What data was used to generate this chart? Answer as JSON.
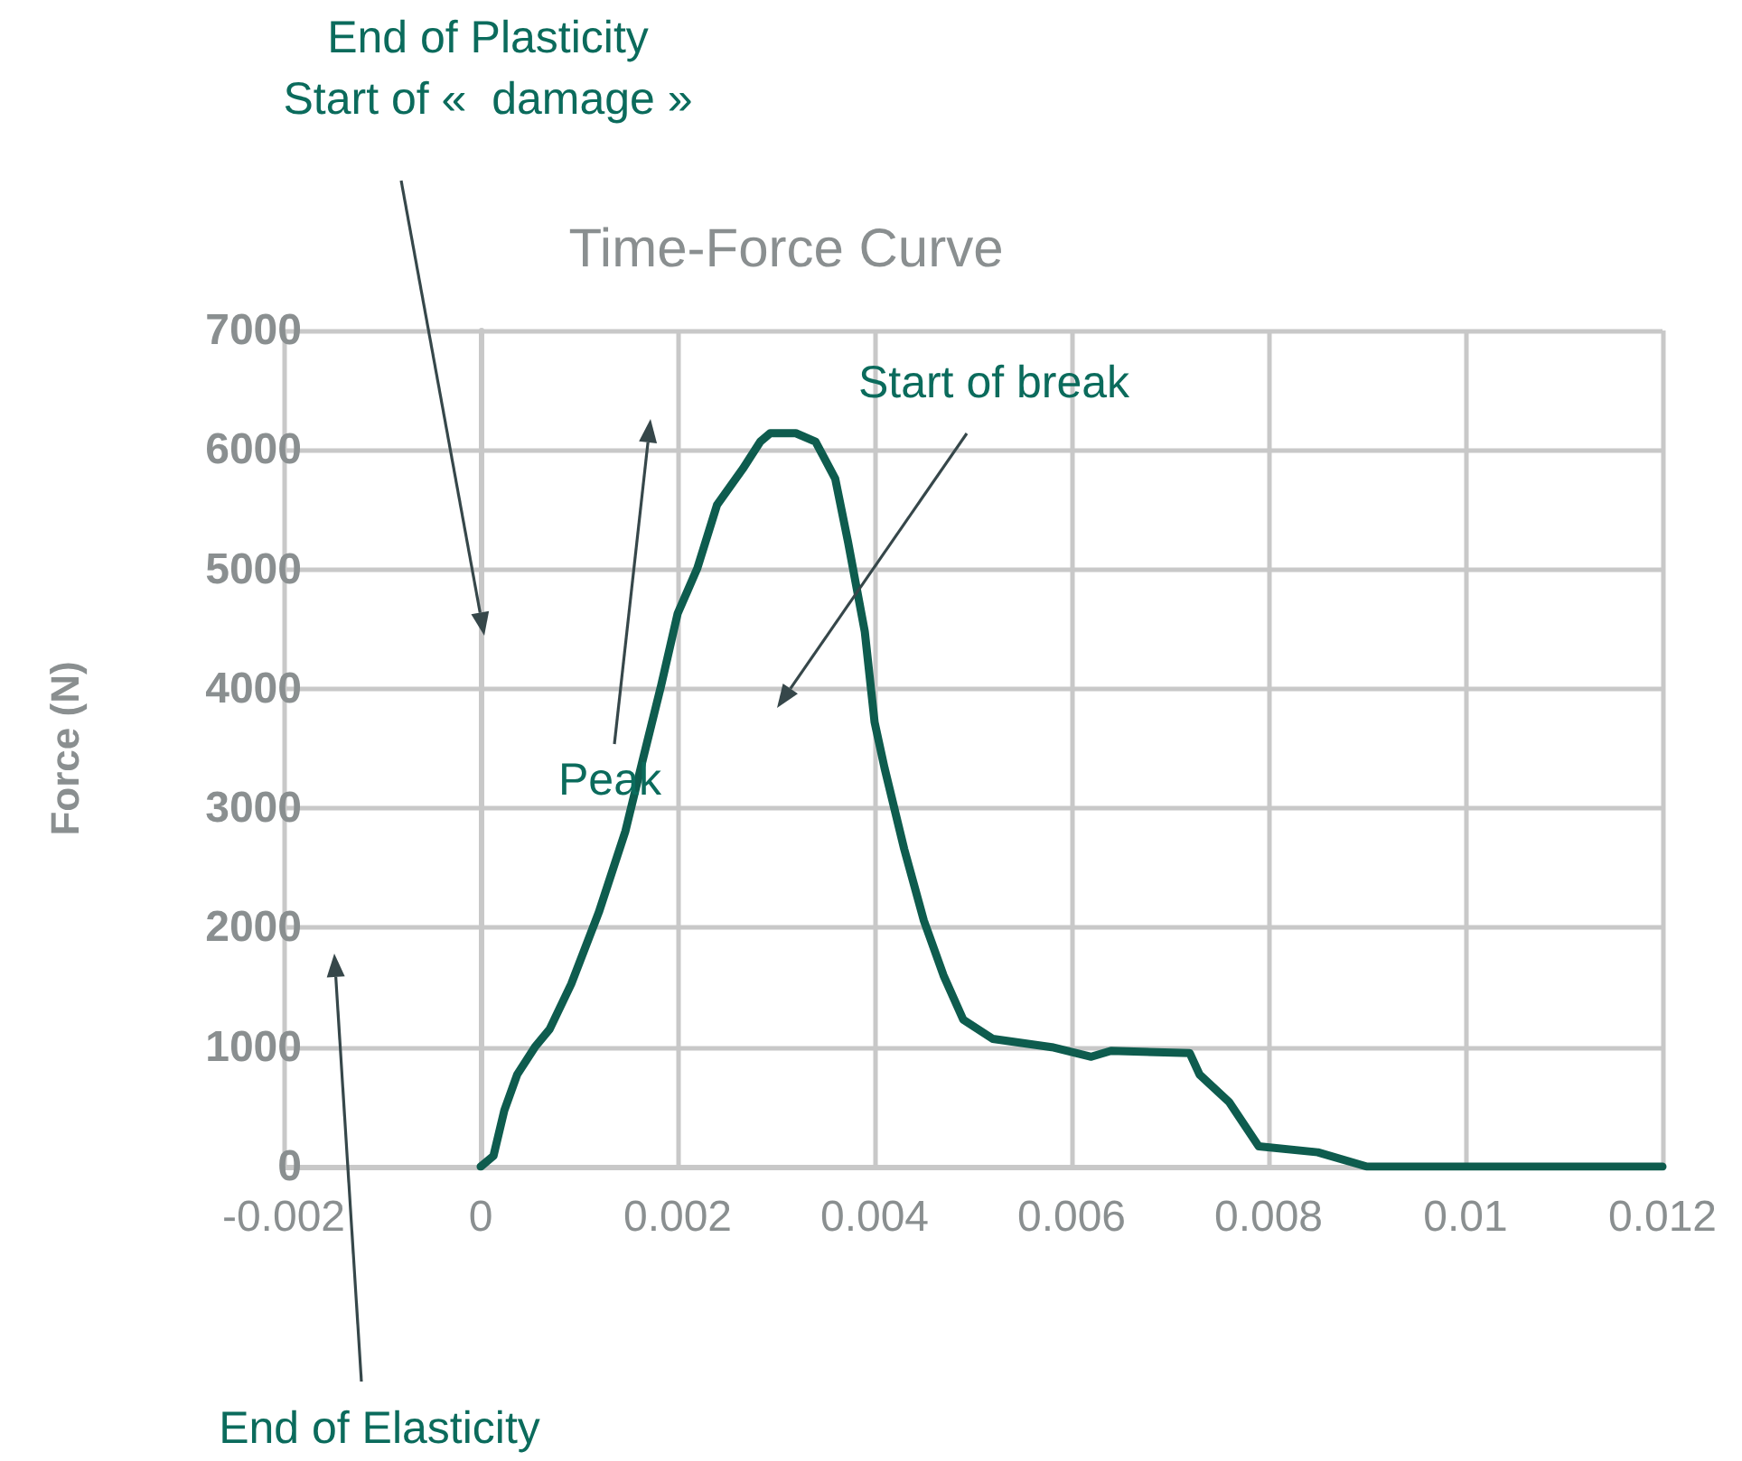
{
  "chart_data": {
    "type": "line",
    "title": "Time-Force Curve",
    "ylabel": "Force (N)",
    "annotations": [
      "End of Plasticity\nStart of «  damage »",
      "Peak",
      "Start of break",
      "End of Elasticity"
    ],
    "series": [
      {
        "color": "#0e5c4e",
        "x": [
          0,
          0.00013,
          0.00024,
          0.00037,
          0.00055,
          0.0007,
          0.00092,
          0.0012,
          0.00147,
          0.00165,
          0.00183,
          0.002,
          0.0022,
          0.0024,
          0.00266,
          0.00284,
          0.00294,
          0.0032,
          0.0034,
          0.0036,
          0.00373,
          0.0039,
          0.004,
          0.0041,
          0.0043,
          0.0045,
          0.0047,
          0.0049,
          0.0052,
          0.0058,
          0.0062,
          0.0064,
          0.0072,
          0.0073,
          0.0076,
          0.0079,
          0.0085,
          0.009,
          0.012
        ],
        "values": [
          0,
          90,
          470,
          770,
          1000,
          1150,
          1530,
          2130,
          2810,
          3420,
          4020,
          4630,
          5010,
          5540,
          5840,
          6070,
          6140,
          6140,
          6070,
          5760,
          5230,
          4480,
          3720,
          3340,
          2660,
          2060,
          1600,
          1230,
          1070,
          1000,
          920,
          970,
          950,
          770,
          540,
          170,
          120,
          0,
          0
        ]
      }
    ],
    "xlim": [
      -0.002,
      0.012
    ],
    "xticks": [
      -0.002,
      0,
      0.002,
      0.004,
      0.006,
      0.008,
      0.01,
      0.012
    ],
    "ylim": [
      0,
      7000
    ],
    "yticks": [
      0,
      1000,
      2000,
      3000,
      4000,
      5000,
      6000,
      7000
    ],
    "grid": true,
    "marker": "none",
    "line_style": "solid"
  }
}
